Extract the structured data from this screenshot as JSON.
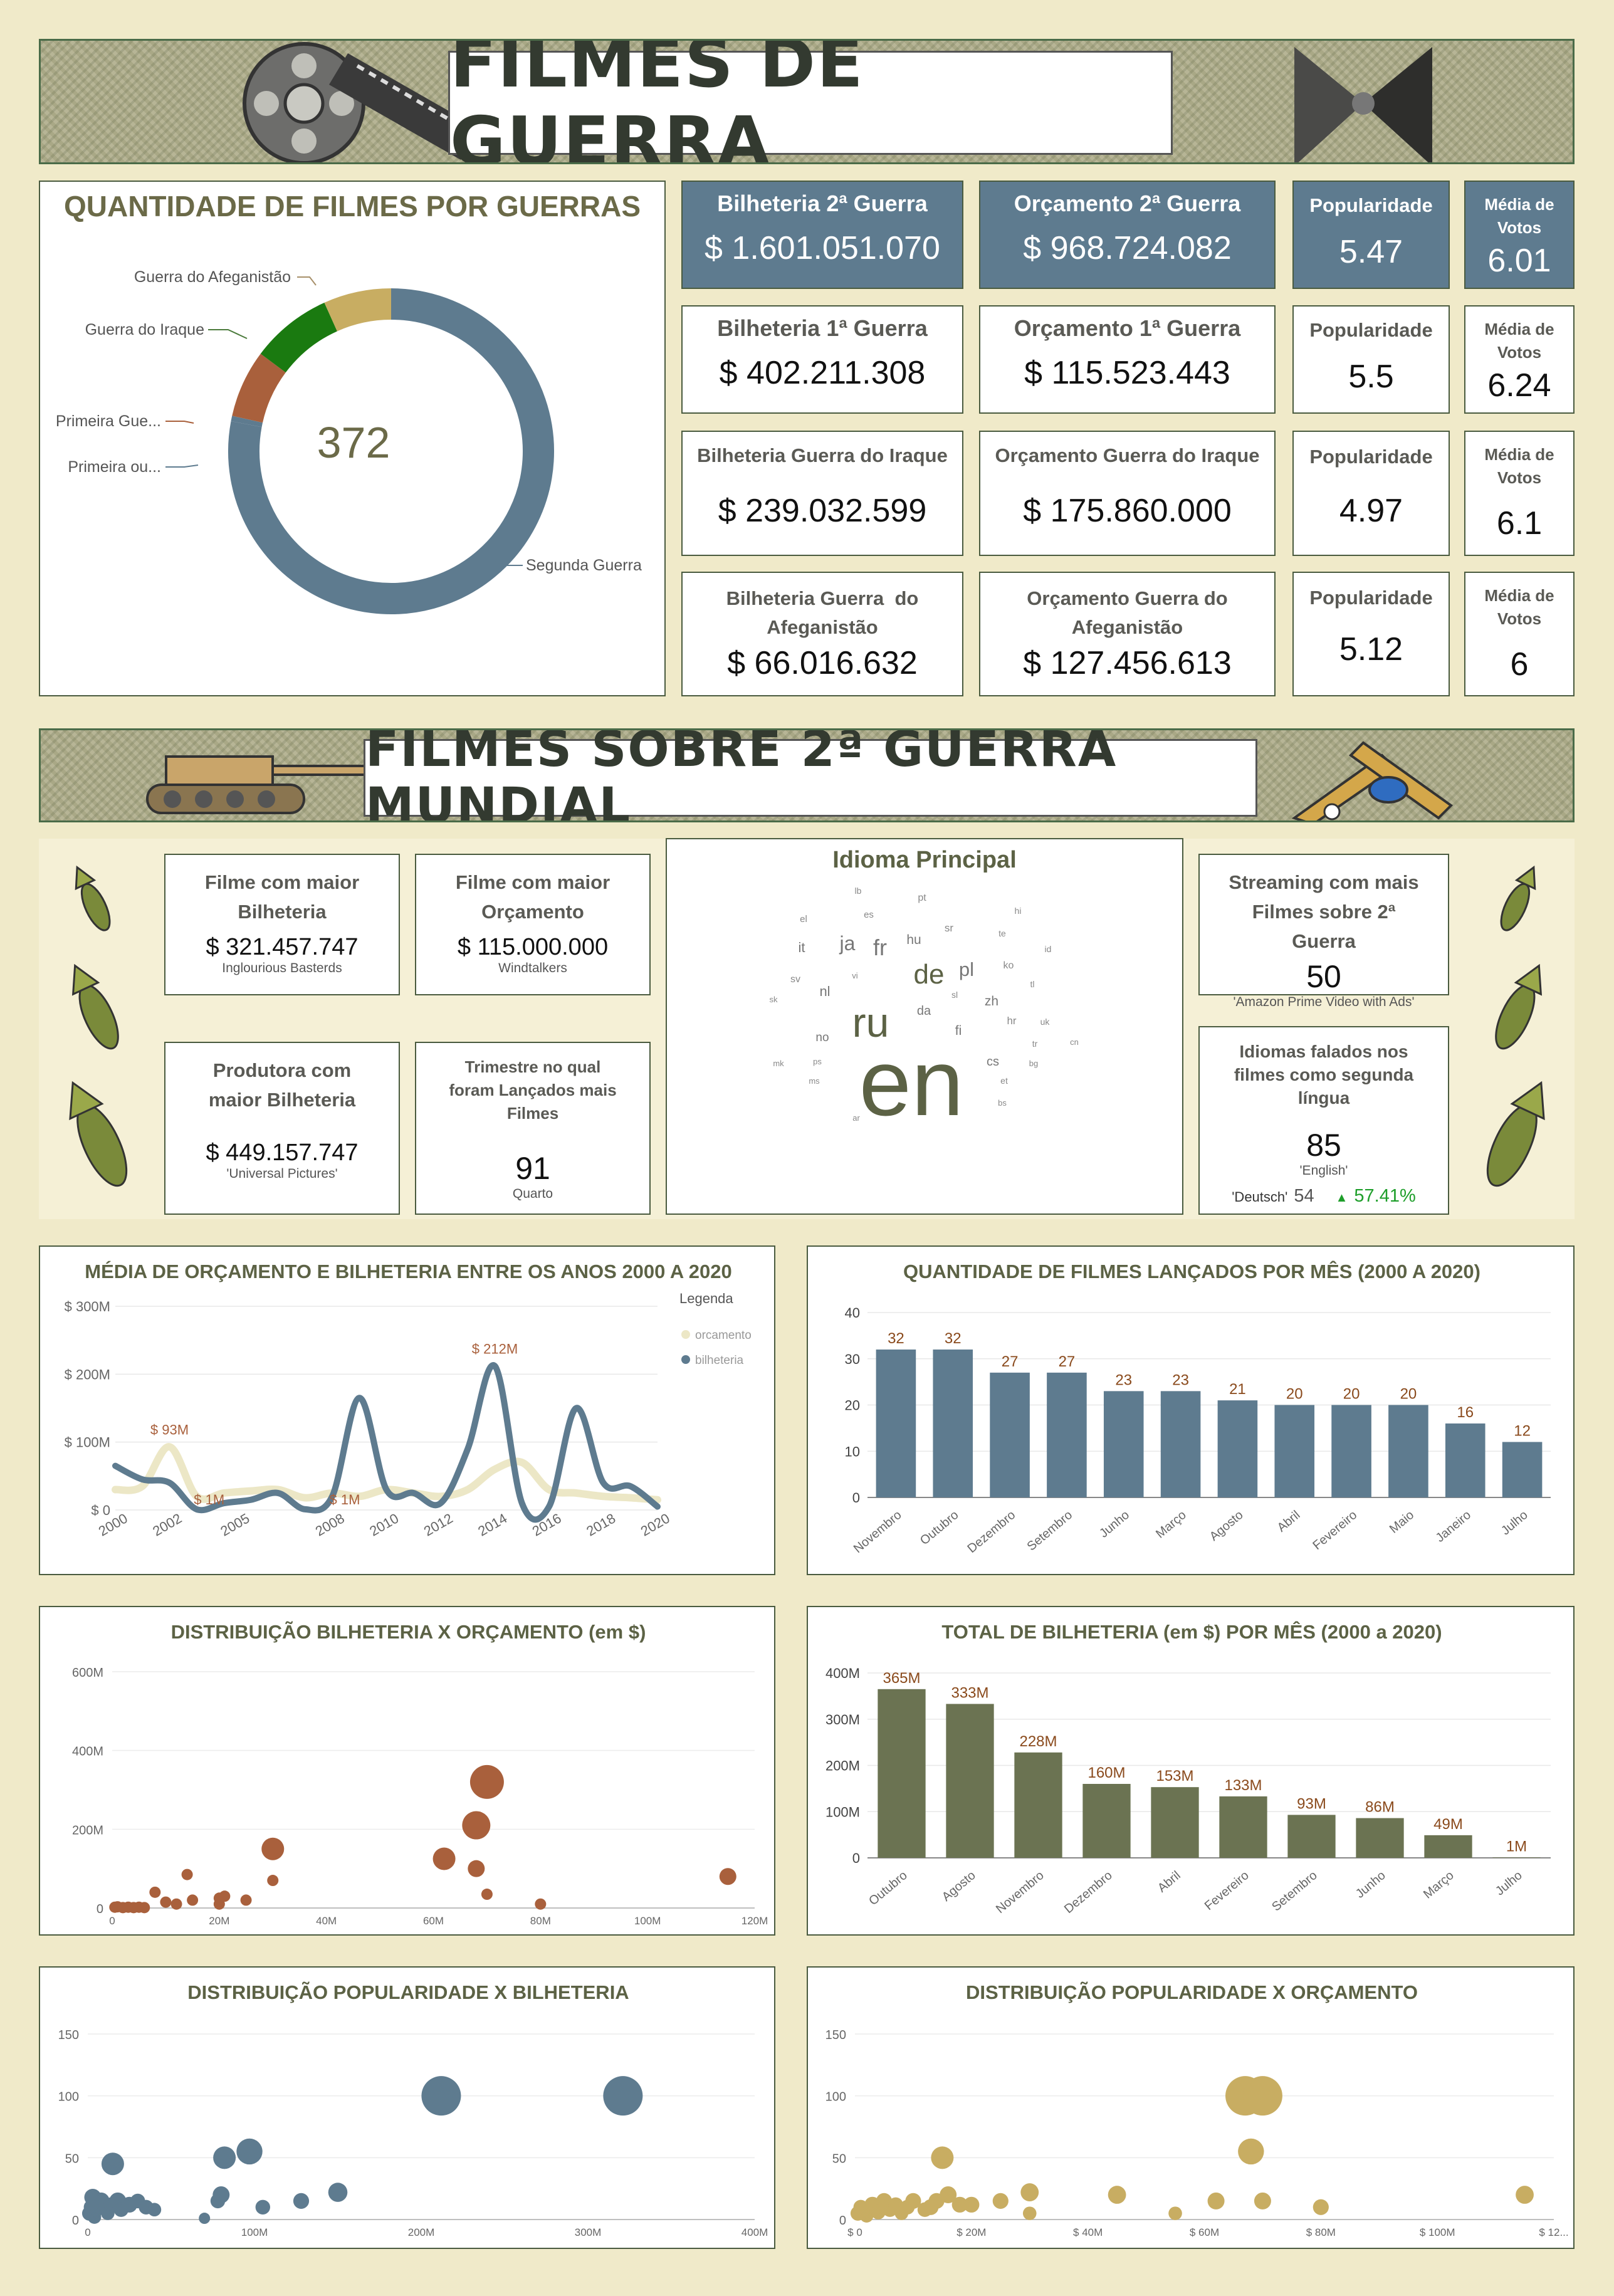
{
  "header": {
    "title": "FILMES DE GUERRA"
  },
  "donut": {
    "title": "QUANTIDADE DE FILMES POR GUERRAS",
    "total": "372",
    "labels": {
      "afeg": "Guerra do Afeganistão",
      "iraque": "Guerra do Iraque",
      "primeira1": "Primeira Gue...",
      "primeira2": "Primeira ou...",
      "segunda": "Segunda Guerra"
    }
  },
  "kpis": {
    "r1": {
      "bil_label": "Bilheteria 2ª Guerra",
      "bil_value": "$ 1.601.051.070",
      "orc_label": "Orçamento 2ª Guerra",
      "orc_value": "$ 968.724.082",
      "pop_label": "Popularidade",
      "pop_value": "5.47",
      "vot_label": "Média de Votos",
      "vot_value": "6.01"
    },
    "r2": {
      "bil_label": "Bilheteria 1ª Guerra",
      "bil_value": "$ 402.211.308",
      "orc_label": "Orçamento 1ª Guerra",
      "orc_value": "$ 115.523.443",
      "pop_label": "Popularidade",
      "pop_value": "5.5",
      "vot_label": "Média de Votos",
      "vot_value": "6.24"
    },
    "r3": {
      "bil_label": "Bilheteria Guerra do Iraque",
      "bil_value": "$ 239.032.599",
      "orc_label": "Orçamento Guerra do Iraque",
      "orc_value": "$ 175.860.000",
      "pop_label": "Popularidade",
      "pop_value": "4.97",
      "vot_label": "Média de Votos",
      "vot_value": "6.1"
    },
    "r4": {
      "bil_label": "Bilheteria Guerra  do Afeganistão",
      "bil_value": "$ 66.016.632",
      "orc_label": "Orçamento Guerra do Afeganistão",
      "orc_value": "$ 127.456.613",
      "pop_label": "Popularidade",
      "pop_value": "5.12",
      "vot_label": "Média de Votos",
      "vot_value": "6"
    }
  },
  "section2": {
    "title": "FILMES SOBRE 2ª GUERRA MUNDIAL"
  },
  "ww2": {
    "maior_bil": {
      "label": "Filme com maior Bilheteria",
      "value": "$ 321.457.747",
      "sub": "Inglourious Basterds"
    },
    "maior_orc": {
      "label": "Filme com maior Orçamento",
      "value": "$ 115.000.000",
      "sub": "Windtalkers"
    },
    "produtora": {
      "label": "Produtora com maior Bilheteria",
      "value": "$ 449.157.747",
      "sub": "'Universal Pictures'"
    },
    "trimestre": {
      "label": "Trimestre no qual foram Lançados mais Filmes",
      "value": "91",
      "sub": "Quarto"
    },
    "streaming": {
      "label": "Streaming com mais Filmes sobre 2ª Guerra",
      "value": "50",
      "sub": "'Amazon Prime Video with Ads'"
    },
    "idiomas": {
      "label": "Idiomas falados nos filmes como segunda língua",
      "value": "85",
      "sub": "'English'",
      "cmp_label": "'Deutsch'",
      "cmp_value": "54",
      "delta": "57.41%"
    }
  },
  "wordcloud": {
    "title": "Idioma Principal",
    "words": [
      {
        "t": "en",
        "s": 150
      },
      {
        "t": "ru",
        "s": 66
      },
      {
        "t": "de",
        "s": 44
      },
      {
        "t": "fr",
        "s": 36
      },
      {
        "t": "ja",
        "s": 32
      },
      {
        "t": "pl",
        "s": 31
      },
      {
        "t": "it",
        "s": 22
      },
      {
        "t": "nl",
        "s": 22
      },
      {
        "t": "hu",
        "s": 21
      },
      {
        "t": "zh",
        "s": 21
      },
      {
        "t": "da",
        "s": 20
      },
      {
        "t": "fi",
        "s": 21
      },
      {
        "t": "cs",
        "s": 20
      },
      {
        "t": "hr",
        "s": 17
      },
      {
        "t": "no",
        "s": 19
      },
      {
        "t": "sr",
        "s": 17
      },
      {
        "t": "ko",
        "s": 16
      },
      {
        "t": "sv",
        "s": 16
      },
      {
        "t": "el",
        "s": 15
      },
      {
        "t": "es",
        "s": 15
      },
      {
        "t": "pt",
        "s": 16
      },
      {
        "t": "lb",
        "s": 14
      },
      {
        "t": "hi",
        "s": 14
      },
      {
        "t": "te",
        "s": 14
      },
      {
        "t": "id",
        "s": 14
      },
      {
        "t": "tl",
        "s": 14
      },
      {
        "t": "uk",
        "s": 14
      },
      {
        "t": "tr",
        "s": 14
      },
      {
        "t": "cn",
        "s": 13
      },
      {
        "t": "bg",
        "s": 13
      },
      {
        "t": "et",
        "s": 14
      },
      {
        "t": "bs",
        "s": 13
      },
      {
        "t": "sk",
        "s": 13
      },
      {
        "t": "vi",
        "s": 13
      },
      {
        "t": "sl",
        "s": 14
      },
      {
        "t": "ps",
        "s": 13
      },
      {
        "t": "mk",
        "s": 13
      },
      {
        "t": "ms",
        "s": 13
      },
      {
        "t": "ar",
        "s": 13
      }
    ]
  },
  "colors": {
    "blue": "#5e7b8f",
    "olive": "#6b7352",
    "brown": "#a9603c",
    "gold": "#c8ad62",
    "green": "#1a7a10",
    "cream": "#ece7c6"
  },
  "chart_data": [
    {
      "id": "donut",
      "type": "pie",
      "title": "QUANTIDADE DE FILMES POR GUERRAS",
      "categories": [
        "Segunda Guerra",
        "Primeira ou...",
        "Primeira Gue...",
        "Guerra do Iraque",
        "Guerra do Afeganistão"
      ],
      "values": [
        290,
        2,
        25,
        30,
        25
      ]
    },
    {
      "id": "media",
      "type": "line",
      "title": "MÉDIA DE ORÇAMENTO E BILHETERIA ENTRE OS ANOS 2000 A 2020",
      "legend_title": "Legenda",
      "legend": "right",
      "x_ticks": [
        "2000",
        "2002",
        "2005",
        "2008",
        "2010",
        "2012",
        "2014",
        "2016",
        "2018",
        "2020"
      ],
      "y_ticks": [
        "$ 0",
        "$ 100M",
        "$ 200M",
        "$ 300M"
      ],
      "ylim": [
        0,
        300
      ],
      "annotations": [
        "$ 93M",
        "$ 212M",
        "$ 1M",
        "$ 1M"
      ],
      "series": [
        {
          "name": "orcamento",
          "x": [
            2000,
            2001,
            2002,
            2003,
            2004,
            2005,
            2006,
            2007,
            2008,
            2009,
            2010,
            2011,
            2012,
            2013,
            2014,
            2015,
            2016,
            2017,
            2018,
            2019,
            2020
          ],
          "values": [
            30,
            35,
            93,
            20,
            25,
            28,
            30,
            18,
            25,
            20,
            30,
            25,
            20,
            30,
            60,
            70,
            30,
            25,
            20,
            18,
            15
          ]
        },
        {
          "name": "bilheteria",
          "x": [
            2000,
            2001,
            2002,
            2003,
            2004,
            2005,
            2006,
            2007,
            2008,
            2009,
            2010,
            2011,
            2012,
            2013,
            2014,
            2015,
            2016,
            2017,
            2018,
            2019,
            2020
          ],
          "values": [
            65,
            45,
            40,
            1,
            10,
            15,
            25,
            1,
            20,
            165,
            30,
            25,
            10,
            90,
            212,
            10,
            5,
            150,
            40,
            35,
            5
          ]
        }
      ]
    },
    {
      "id": "mes",
      "type": "bar",
      "title": "QUANTIDADE DE FILMES LANÇADOS POR MÊS (2000 A 2020)",
      "categories": [
        "Novembro",
        "Outubro",
        "Dezembro",
        "Setembro",
        "Junho",
        "Março",
        "Agosto",
        "Abril",
        "Fevereiro",
        "Maio",
        "Janeiro",
        "Julho"
      ],
      "values": [
        32,
        32,
        27,
        27,
        23,
        23,
        21,
        20,
        20,
        20,
        16,
        12
      ],
      "y_ticks": [
        "0",
        "10",
        "20",
        "30",
        "40"
      ],
      "ylim": [
        0,
        40
      ]
    },
    {
      "id": "disp",
      "type": "scatter",
      "title": "DISTRIBUIÇÃO BILHETERIA X ORÇAMENTO (em $)",
      "x_ticks": [
        "0",
        "20M",
        "40M",
        "60M",
        "80M",
        "100M",
        "120M"
      ],
      "y_ticks": [
        "0",
        "200M",
        "400M",
        "600M"
      ],
      "xlim": [
        0,
        120
      ],
      "ylim": [
        0,
        600
      ],
      "points": [
        [
          0.5,
          2,
          1
        ],
        [
          1,
          3,
          1
        ],
        [
          2,
          1,
          1
        ],
        [
          3,
          2,
          1
        ],
        [
          4,
          1,
          1
        ],
        [
          5,
          2,
          1
        ],
        [
          6,
          1,
          1
        ],
        [
          8,
          40,
          1
        ],
        [
          10,
          15,
          1
        ],
        [
          12,
          10,
          1
        ],
        [
          14,
          85,
          1
        ],
        [
          15,
          20,
          1
        ],
        [
          20,
          10,
          1
        ],
        [
          20,
          25,
          1
        ],
        [
          21,
          30,
          1
        ],
        [
          25,
          20,
          1
        ],
        [
          30,
          70,
          1
        ],
        [
          30,
          150,
          2
        ],
        [
          62,
          125,
          2
        ],
        [
          68,
          100,
          1.5
        ],
        [
          68,
          210,
          2.5
        ],
        [
          70,
          35,
          1
        ],
        [
          70,
          320,
          3
        ],
        [
          80,
          10,
          1
        ],
        [
          115,
          80,
          1.5
        ]
      ]
    },
    {
      "id": "total",
      "type": "bar",
      "title": "TOTAL DE BILHETERIA (em $) POR MÊS (2000 a 2020)",
      "categories": [
        "Outubro",
        "Agosto",
        "Novembro",
        "Dezembro",
        "Abril",
        "Fevereiro",
        "Setembro",
        "Junho",
        "Março",
        "Julho"
      ],
      "values": [
        365,
        333,
        228,
        160,
        153,
        133,
        93,
        86,
        49,
        1
      ],
      "labels": [
        "365M",
        "333M",
        "228M",
        "160M",
        "153M",
        "133M",
        "93M",
        "86M",
        "49M",
        "1M"
      ],
      "y_ticks": [
        "0",
        "100M",
        "200M",
        "300M",
        "400M"
      ],
      "ylim": [
        0,
        400
      ]
    },
    {
      "id": "popbil",
      "type": "scatter",
      "title": "DISTRIBUIÇÃO POPULARIDADE X BILHETERIA",
      "x_ticks": [
        "0",
        "100M",
        "200M",
        "300M",
        "400M"
      ],
      "y_ticks": [
        "0",
        "50",
        "100",
        "150"
      ],
      "xlim": [
        0,
        400
      ],
      "ylim": [
        0,
        150
      ],
      "points": [
        [
          1,
          5,
          1.3
        ],
        [
          2,
          10,
          1.3
        ],
        [
          3,
          18,
          1.5
        ],
        [
          4,
          2,
          1.2
        ],
        [
          5,
          8,
          1.3
        ],
        [
          8,
          15,
          1.5
        ],
        [
          10,
          10,
          1.3
        ],
        [
          12,
          5,
          1.2
        ],
        [
          14,
          12,
          1.3
        ],
        [
          15,
          45,
          2
        ],
        [
          18,
          15,
          1.5
        ],
        [
          20,
          8,
          1.3
        ],
        [
          25,
          12,
          1.4
        ],
        [
          30,
          15,
          1.3
        ],
        [
          35,
          10,
          1.3
        ],
        [
          40,
          8,
          1.2
        ],
        [
          70,
          1,
          1
        ],
        [
          78,
          15,
          1.3
        ],
        [
          80,
          20,
          1.5
        ],
        [
          82,
          50,
          2
        ],
        [
          97,
          55,
          2.3
        ],
        [
          105,
          10,
          1.3
        ],
        [
          128,
          15,
          1.4
        ],
        [
          150,
          22,
          1.7
        ],
        [
          212,
          100,
          3.5
        ],
        [
          321,
          100,
          3.5
        ]
      ]
    },
    {
      "id": "poporc",
      "type": "scatter",
      "title": "DISTRIBUIÇÃO POPULARIDADE X ORÇAMENTO",
      "x_ticks": [
        "$ 0",
        "$ 20M",
        "$ 40M",
        "$ 60M",
        "$ 80M",
        "$ 100M",
        "$ 12..."
      ],
      "y_ticks": [
        "0",
        "50",
        "100",
        "150"
      ],
      "xlim": [
        0,
        120
      ],
      "ylim": [
        0,
        150
      ],
      "points": [
        [
          0.5,
          5,
          1.3
        ],
        [
          1,
          10,
          1.3
        ],
        [
          2,
          3,
          1.2
        ],
        [
          3,
          12,
          1.4
        ],
        [
          4,
          6,
          1.3
        ],
        [
          5,
          15,
          1.4
        ],
        [
          6,
          8,
          1.3
        ],
        [
          7,
          12,
          1.3
        ],
        [
          8,
          5,
          1.2
        ],
        [
          9,
          10,
          1.3
        ],
        [
          10,
          15,
          1.4
        ],
        [
          12,
          8,
          1.3
        ],
        [
          13,
          10,
          1.4
        ],
        [
          14,
          15,
          1.4
        ],
        [
          15,
          50,
          2
        ],
        [
          16,
          20,
          1.5
        ],
        [
          18,
          12,
          1.4
        ],
        [
          20,
          12,
          1.4
        ],
        [
          25,
          15,
          1.4
        ],
        [
          30,
          22,
          1.6
        ],
        [
          30,
          5,
          1.2
        ],
        [
          45,
          20,
          1.6
        ],
        [
          55,
          5,
          1.2
        ],
        [
          62,
          15,
          1.5
        ],
        [
          67,
          100,
          3.5
        ],
        [
          70,
          100,
          3.5
        ],
        [
          68,
          55,
          2.3
        ],
        [
          70,
          15,
          1.5
        ],
        [
          80,
          10,
          1.4
        ],
        [
          115,
          20,
          1.6
        ]
      ]
    }
  ]
}
